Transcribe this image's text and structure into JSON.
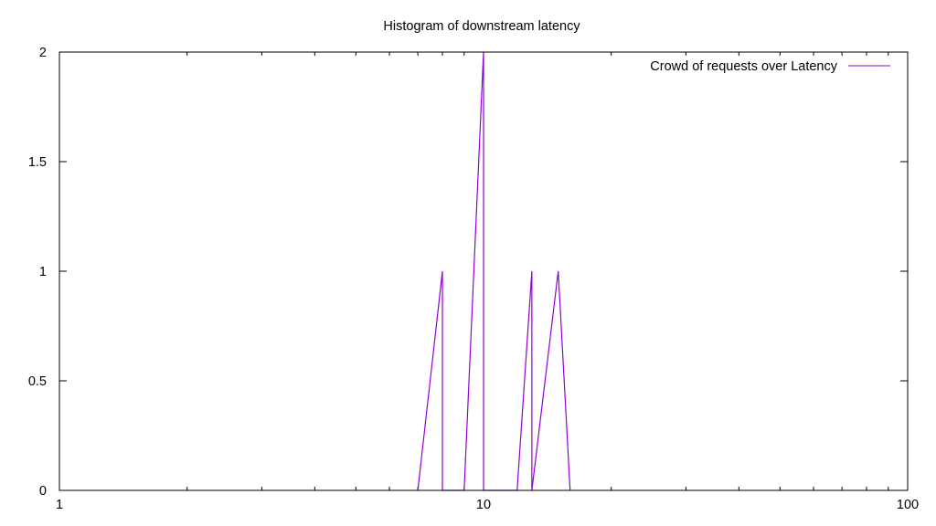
{
  "chart_data": {
    "type": "line",
    "title": "Histogram of downstream latency",
    "xlabel": "",
    "ylabel": "",
    "xscale": "log",
    "xlim": [
      1,
      100
    ],
    "ylim": [
      0,
      2
    ],
    "x_ticks": [
      {
        "value": 1,
        "label": "1"
      },
      {
        "value": 10,
        "label": "10"
      },
      {
        "value": 100,
        "label": "100"
      }
    ],
    "y_ticks": [
      {
        "value": 0,
        "label": "0"
      },
      {
        "value": 0.5,
        "label": "0.5"
      },
      {
        "value": 1,
        "label": "1"
      },
      {
        "value": 1.5,
        "label": "1.5"
      },
      {
        "value": 2,
        "label": "2"
      }
    ],
    "grid": false,
    "legend_position": "top-right",
    "series": [
      {
        "name": "Crowd of requests over Latency",
        "color": "#9400d3",
        "points": [
          [
            7,
            0
          ],
          [
            8,
            1
          ],
          [
            8,
            0
          ],
          [
            9,
            0
          ],
          [
            10,
            2
          ],
          [
            10,
            0
          ],
          [
            12,
            0
          ],
          [
            13,
            1
          ],
          [
            13,
            0
          ],
          [
            15,
            1
          ],
          [
            16,
            0
          ]
        ]
      }
    ]
  }
}
